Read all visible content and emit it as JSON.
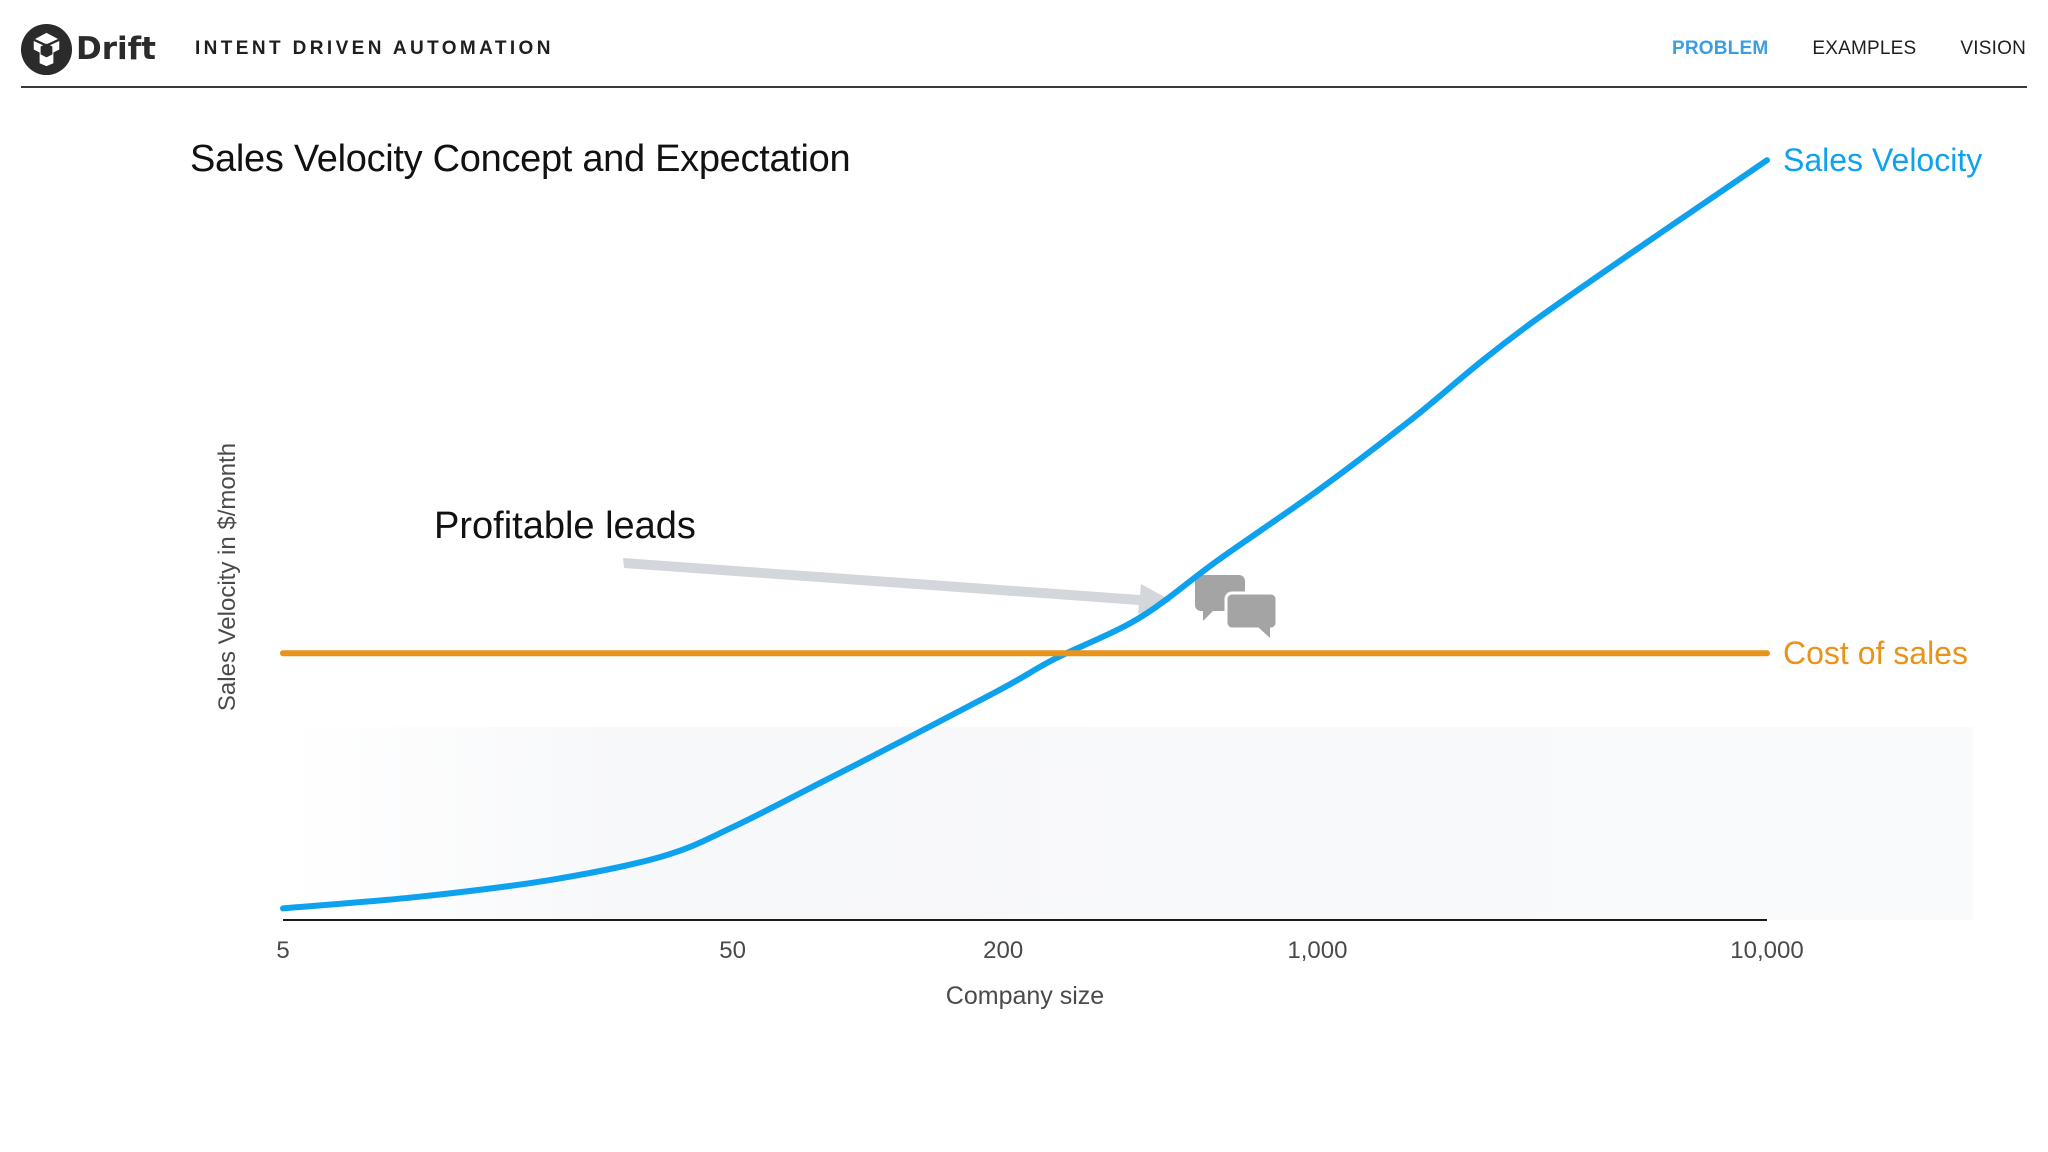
{
  "header": {
    "brand_name": "Drift",
    "tagline": "INTENT DRIVEN AUTOMATION",
    "nav": [
      {
        "label": "PROBLEM",
        "active": true
      },
      {
        "label": "EXAMPLES",
        "active": false
      },
      {
        "label": "VISION",
        "active": false
      }
    ],
    "accent_color": "#3c9ee0"
  },
  "slide": {
    "title": "Sales Velocity Concept and Expectation"
  },
  "annotation": {
    "text": "Profitable  leads",
    "icon": "chat-bubbles-icon"
  },
  "chart_data": {
    "type": "line",
    "title": "Sales Velocity Concept and Expectation",
    "xlabel": "Company size",
    "ylabel": "Sales Velocity in $/month",
    "x_scale": "log",
    "x_ticks": [
      {
        "value": 5,
        "label": "5"
      },
      {
        "value": 50,
        "label": "50"
      },
      {
        "value": 200,
        "label": "200"
      },
      {
        "value": 1000,
        "label": "1,000"
      },
      {
        "value": 10000,
        "label": "10,000"
      }
    ],
    "y_ticks_shown": false,
    "grid": false,
    "series": [
      {
        "name": "Sales Velocity",
        "color": "#0ea2ee",
        "points": [
          [
            5,
            0.02
          ],
          [
            10,
            0.04
          ],
          [
            20,
            0.07
          ],
          [
            35,
            0.11
          ],
          [
            50,
            0.16
          ],
          [
            80,
            0.24
          ],
          [
            120,
            0.31
          ],
          [
            200,
            0.4
          ],
          [
            260,
            0.45
          ],
          [
            400,
            0.52
          ],
          [
            600,
            0.62
          ],
          [
            1000,
            0.74
          ],
          [
            1600,
            0.86
          ],
          [
            3000,
            1.03
          ],
          [
            10000,
            1.31
          ]
        ]
      },
      {
        "name": "Cost of sales",
        "color": "#e8941a",
        "points": [
          [
            5,
            0.46
          ],
          [
            10000,
            0.46
          ]
        ]
      }
    ]
  }
}
